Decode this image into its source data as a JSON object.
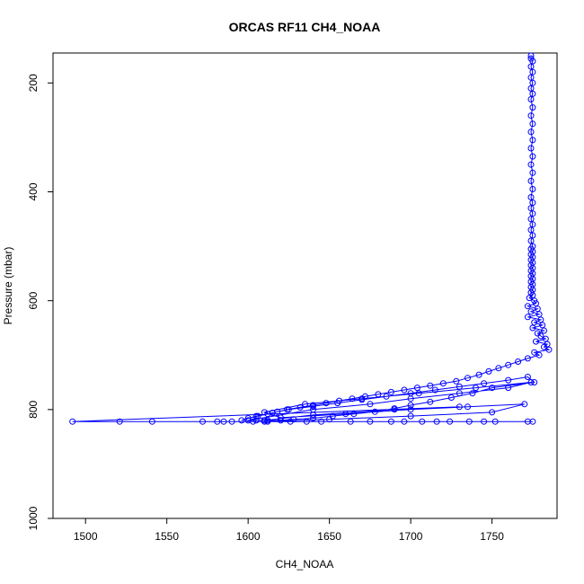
{
  "chart_data": {
    "type": "scatter",
    "title": "ORCAS RF11 CH4_NOAA",
    "xlabel": "CH4_NOAA",
    "ylabel": "Pressure (mbar)",
    "xlim": [
      1480,
      1790
    ],
    "ylim": [
      1000,
      145
    ],
    "y_reversed": true,
    "xticks": [
      1500,
      1550,
      1600,
      1650,
      1700,
      1750
    ],
    "yticks": [
      200,
      400,
      600,
      800,
      1000
    ],
    "grid": false,
    "legend": "none",
    "color": "#0000ff",
    "series": [
      {
        "mode": "lines+markers",
        "x": [
          1774,
          1774,
          1775,
          1774,
          1775,
          1774,
          1775,
          1774,
          1775,
          1774,
          1775,
          1774,
          1775,
          1774,
          1775,
          1774,
          1775,
          1774,
          1775,
          1774,
          1775,
          1774,
          1775,
          1774,
          1775,
          1774,
          1775,
          1774,
          1775,
          1774,
          1775,
          1774,
          1775,
          1774,
          1775,
          1774,
          1775,
          1774,
          1775,
          1774,
          1775,
          1774,
          1775,
          1774,
          1775,
          1774,
          1775,
          1774,
          1775,
          1773,
          1776,
          1777,
          1772,
          1778,
          1774,
          1779,
          1772,
          1780,
          1776,
          1781,
          1775,
          1782,
          1778,
          1780,
          1783,
          1777,
          1784,
          1782,
          1785,
          1776,
          1779,
          1772,
          1766,
          1760,
          1754,
          1748,
          1742,
          1735,
          1728,
          1720,
          1712,
          1704,
          1696,
          1688,
          1680,
          1672,
          1664,
          1656,
          1648,
          1640,
          1632,
          1624,
          1618,
          1612,
          1606,
          1600,
          1596,
          1605,
          1615,
          1625,
          1640,
          1655,
          1670,
          1685,
          1700,
          1715,
          1730,
          1745,
          1760,
          1772,
          1776,
          1750,
          1738,
          1725,
          1712,
          1700,
          1690,
          1678,
          1665,
          1652,
          1640,
          1628,
          1620,
          1612,
          1605,
          1600,
          1640,
          1675,
          1700,
          1730,
          1760,
          1774,
          1740,
          1705,
          1670,
          1635,
          1610,
          1620,
          1660,
          1700,
          1735,
          1770,
          1750,
          1700,
          1650,
          1610,
          1610,
          1640,
          1690,
          1730,
          1492,
          1521,
          1541,
          1572,
          1581,
          1585,
          1590,
          1603,
          1612,
          1626,
          1636,
          1645,
          1663,
          1675,
          1688,
          1696,
          1707,
          1716,
          1724,
          1736,
          1745,
          1752,
          1772,
          1775
        ],
        "y": [
          150,
          155,
          160,
          170,
          180,
          190,
          200,
          210,
          220,
          230,
          245,
          260,
          275,
          290,
          305,
          320,
          335,
          350,
          365,
          380,
          395,
          410,
          420,
          430,
          440,
          450,
          460,
          470,
          480,
          490,
          500,
          505,
          510,
          515,
          520,
          525,
          530,
          535,
          540,
          545,
          550,
          555,
          560,
          565,
          570,
          575,
          580,
          585,
          590,
          595,
          600,
          605,
          610,
          615,
          620,
          625,
          630,
          635,
          640,
          645,
          650,
          655,
          660,
          665,
          670,
          675,
          680,
          685,
          690,
          695,
          700,
          706,
          712,
          718,
          724,
          730,
          736,
          742,
          748,
          752,
          756,
          760,
          764,
          768,
          772,
          776,
          780,
          784,
          788,
          792,
          796,
          800,
          804,
          808,
          812,
          816,
          820,
          812,
          806,
          800,
          794,
          788,
          782,
          776,
          770,
          764,
          758,
          752,
          746,
          740,
          750,
          760,
          770,
          778,
          786,
          792,
          798,
          804,
          808,
          812,
          816,
          818,
          820,
          820,
          820,
          820,
          800,
          790,
          780,
          770,
          760,
          750,
          760,
          770,
          780,
          790,
          805,
          815,
          808,
          800,
          795,
          790,
          805,
          812,
          818,
          822,
          820,
          810,
          800,
          795,
          822,
          822,
          822,
          822,
          822,
          822,
          822,
          822,
          822,
          822,
          822,
          822,
          822,
          822,
          822,
          822,
          822,
          822,
          822,
          822,
          822,
          822,
          822,
          822
        ]
      }
    ]
  }
}
